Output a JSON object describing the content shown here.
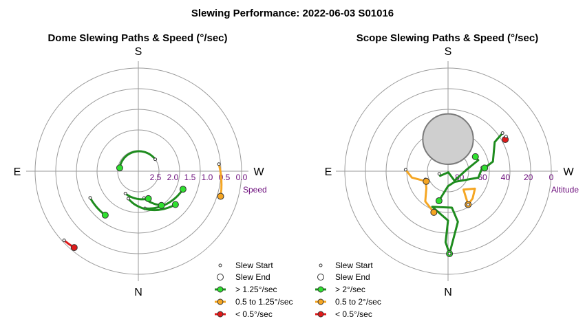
{
  "title": "Slewing Performance: 2022-06-03 S01016",
  "colors": {
    "fast": "#1e8c1e",
    "mid": "#f5a623",
    "slow": "#e01b1b",
    "fastDot": "#2fe02f",
    "midDot": "#f5a623",
    "slowDot": "#e01b1b",
    "ring": "#9a9a9a",
    "tick": "#6a0a7a"
  },
  "chart_data": [
    {
      "type": "polar-path",
      "title": "Dome Slewing Paths & Speed (°/sec)",
      "directions": {
        "top": "S",
        "bottom": "N",
        "left": "E",
        "right": "W"
      },
      "radial_axis": {
        "label": "Speed",
        "ticks": [
          "2.5",
          "2.0",
          "1.5",
          "1.0",
          "0.5",
          "0.0"
        ],
        "tick_values": [
          2.5,
          2.0,
          1.5,
          1.0,
          0.5,
          0.0
        ],
        "center_value": 3.0,
        "edge_value": 0.0
      },
      "legend": {
        "slew_start": "Slew Start",
        "slew_end": "Slew End",
        "fast": "> 1.25°/sec",
        "mid": "0.5 to 1.25°/sec",
        "slow": "< 0.5°/sec"
      },
      "paths": [
        {
          "class": "slow",
          "from": {
            "az": 140,
            "speed": 0.1
          },
          "to": {
            "az": 133,
            "speed": 0.05
          }
        },
        {
          "class": "mid",
          "from": {
            "az": 253,
            "speed": 0.5
          },
          "to": {
            "az": 275,
            "speed": 0.65
          }
        },
        {
          "class": "fast",
          "from": {
            "az": 248,
            "speed": 1.6
          },
          "to": {
            "az": 190,
            "speed": 1.9
          }
        },
        {
          "class": "fast",
          "from": {
            "az": 228,
            "speed": 1.55
          },
          "to": {
            "az": 160,
            "speed": 2.15
          }
        },
        {
          "class": "fast",
          "from": {
            "az": 214,
            "speed": 1.8
          },
          "to": {
            "az": 192,
            "speed": 2.2
          }
        },
        {
          "class": "fast",
          "from": {
            "az": 143,
            "speed": 1.4
          },
          "to": {
            "az": 119,
            "speed": 1.4
          }
        },
        {
          "class": "fast",
          "from": {
            "az": 200,
            "speed": 2.15
          },
          "to": {
            "az": 150,
            "speed": 2.25
          }
        },
        {
          "class": "fast",
          "from": {
            "az": 80,
            "speed": 2.45
          },
          "to": {
            "az": 305,
            "speed": 2.4
          }
        }
      ]
    },
    {
      "type": "polar-path",
      "title": "Scope Slewing Paths & Speed (°/sec)",
      "directions": {
        "top": "S",
        "bottom": "N",
        "left": "E",
        "right": "W"
      },
      "radial_axis": {
        "label": "Altitude",
        "ticks": [
          "80",
          "60",
          "40",
          "20",
          "0"
        ],
        "tick_values": [
          80,
          60,
          40,
          20,
          0
        ],
        "center_value": 90,
        "edge_value": 0
      },
      "legend": {
        "slew_start": "Slew Start",
        "slew_end": "Slew End",
        "fast": "> 2°/sec",
        "mid": "0.5 to 2°/sec",
        "slow": "< 0.5°/sec"
      },
      "zenith_obscured": {
        "az": 0,
        "alt": 62,
        "radius_deg": 22
      },
      "paths": [
        {
          "class": "fast",
          "points": [
            [
              181,
              18
            ],
            [
              191,
              45
            ],
            [
              186,
              58
            ],
            [
              156,
              56
            ],
            [
              180,
              47
            ],
            [
              178,
              28
            ],
            [
              181,
              18
            ]
          ]
        },
        {
          "class": "mid",
          "points": [
            [
              211,
              56
            ],
            [
              222,
              58
            ],
            [
              237,
              62
            ],
            [
              220,
              69
            ],
            [
              211,
              56
            ]
          ]
        },
        {
          "class": "mid",
          "points": [
            [
              161,
              52
            ],
            [
              143,
              57
            ],
            [
              128,
              66
            ],
            [
              110,
              69
            ]
          ]
        },
        {
          "class": "mid",
          "points": [
            [
              115,
              69
            ],
            [
              100,
              58
            ],
            [
              88,
              53
            ]
          ]
        },
        {
          "class": "fast",
          "points": [
            [
              163,
              63
            ],
            [
              180,
              77
            ],
            [
              212,
              79
            ],
            [
              258,
              63
            ],
            [
              276,
              60
            ]
          ]
        },
        {
          "class": "fast",
          "points": [
            [
              298,
              63
            ],
            [
              290,
              62
            ],
            [
              274,
              74
            ],
            [
              214,
              80
            ],
            [
              195,
              89
            ],
            [
              120,
              82
            ],
            [
              107,
              82
            ]
          ]
        },
        {
          "class": "fast",
          "points": [
            [
              275,
              58
            ],
            [
              282,
              50
            ],
            [
              302,
              42
            ],
            [
              305,
              32
            ]
          ]
        },
        {
          "class": "slow",
          "points": [
            [
              299,
              33
            ],
            [
              301,
              31
            ]
          ]
        }
      ]
    }
  ]
}
